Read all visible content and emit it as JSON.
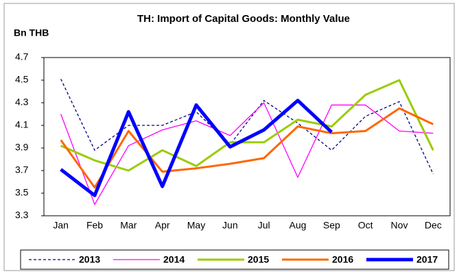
{
  "chart_data": {
    "type": "line",
    "title": "TH: Import of Capital Goods: Monthly Value",
    "y_label": "Bn THB",
    "categories": [
      "Jan",
      "Feb",
      "Mar",
      "Apr",
      "May",
      "Jun",
      "Jul",
      "Aug",
      "Sep",
      "Oct",
      "Nov",
      "Dec"
    ],
    "ylim": [
      3.3,
      4.7
    ],
    "yticks": [
      3.3,
      3.5,
      3.7,
      3.9,
      4.1,
      4.3,
      4.5,
      4.7
    ],
    "grid": false,
    "legend": "bottom",
    "series": [
      {
        "name": "2013",
        "color": "#000080",
        "linestyle": "dashed",
        "values": [
          4.51,
          3.88,
          4.1,
          4.1,
          4.22,
          3.93,
          4.32,
          4.12,
          3.88,
          4.18,
          4.31,
          3.67
        ]
      },
      {
        "name": "2014",
        "color": "#ff00ff",
        "linestyle": "solid",
        "values": [
          4.2,
          3.4,
          3.92,
          4.06,
          4.14,
          4.01,
          4.3,
          3.64,
          4.28,
          4.28,
          4.05,
          4.03
        ]
      },
      {
        "name": "2015",
        "color": "#99cc00",
        "linestyle": "solid",
        "values": [
          3.92,
          3.79,
          3.7,
          3.88,
          3.74,
          3.95,
          3.95,
          4.15,
          4.09,
          4.37,
          4.5,
          3.88
        ]
      },
      {
        "name": "2016",
        "color": "#ff6600",
        "linestyle": "solid",
        "values": [
          3.97,
          3.55,
          4.05,
          3.69,
          3.72,
          3.76,
          3.81,
          4.09,
          4.03,
          4.05,
          4.25,
          4.11
        ]
      },
      {
        "name": "2017",
        "color": "#0000ff",
        "linestyle": "solid",
        "values": [
          3.71,
          3.48,
          4.22,
          3.56,
          4.28,
          3.91,
          4.06,
          4.32,
          4.04,
          null,
          null,
          null
        ]
      }
    ]
  }
}
